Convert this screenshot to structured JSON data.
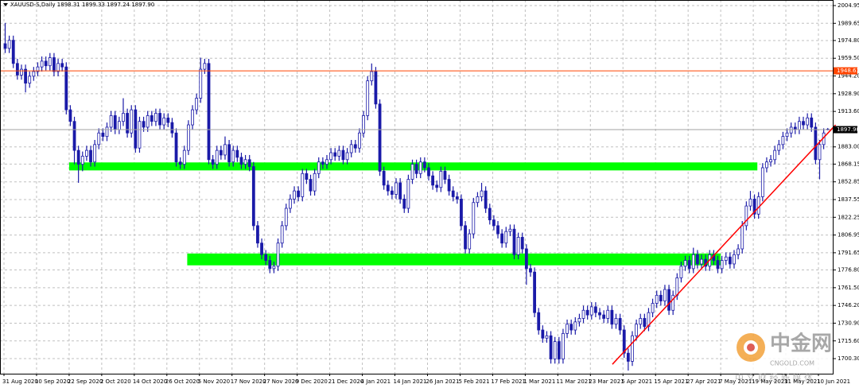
{
  "chart_data": {
    "type": "candlestick",
    "header": "XAUUSD-S,Daily  1898.31 1899.33 1897.24 1897.90",
    "categories": [
      "31 Aug 2020",
      null,
      null,
      null,
      null,
      null,
      null,
      null,
      "10 Sep 2020",
      null,
      null,
      null,
      null,
      null,
      null,
      null,
      "22 Sep 2020",
      null,
      null,
      null,
      null,
      null,
      null,
      null,
      "2 Oct 2020",
      null,
      null,
      null,
      null,
      null,
      null,
      null,
      "14 Oct 2020",
      null,
      null,
      null,
      null,
      null,
      null,
      null,
      "26 Oct 2020",
      null,
      null,
      null,
      null,
      null,
      null,
      null,
      "5 Nov 2020",
      null,
      null,
      null,
      null,
      null,
      null,
      null,
      "17 Nov 2020",
      null,
      null,
      null,
      null,
      null,
      null,
      null,
      "27 Nov 2020",
      null,
      null,
      null,
      null,
      null,
      null,
      null,
      "9 Dec 2020",
      null,
      null,
      null,
      null,
      null,
      null,
      null,
      "21 Dec 2020",
      null,
      null,
      null,
      null,
      null,
      null,
      null,
      "4 Jan 2021",
      null,
      null,
      null,
      null,
      null,
      null,
      null,
      "14 Jan 2021",
      null,
      null,
      null,
      null,
      null,
      null,
      null,
      "26 Jan 2021",
      null,
      null,
      null,
      null,
      null,
      null,
      null,
      "5 Feb 2021",
      null,
      null,
      null,
      null,
      null,
      null,
      null,
      "17 Feb 2021",
      null,
      null,
      null,
      null,
      null,
      null,
      null,
      "1 Mar 2021",
      null,
      null,
      null,
      null,
      null,
      null,
      null,
      "11 Mar 2021",
      null,
      null,
      null,
      null,
      null,
      null,
      null,
      "23 Mar 2021",
      null,
      null,
      null,
      null,
      null,
      null,
      null,
      "5 Apr 2021",
      null,
      null,
      null,
      null,
      null,
      null,
      null,
      "15 Apr 2021",
      null,
      null,
      null,
      null,
      null,
      null,
      null,
      "27 Apr 2021",
      null,
      null,
      null,
      null,
      null,
      null,
      null,
      "7 May 2021",
      null,
      null,
      null,
      null,
      null,
      null,
      null,
      "19 May 2021",
      null,
      null,
      null,
      null,
      null,
      null,
      null,
      "31 May 2021",
      null,
      null,
      null,
      null,
      null,
      null,
      null,
      "10 Jun 2021",
      null,
      null
    ],
    "open": [
      1972,
      1968,
      1975,
      1955,
      1945,
      1950,
      1938,
      1944,
      1948,
      1952,
      1957,
      1953,
      1960,
      1948,
      1955,
      1952,
      1915,
      1905,
      1880,
      1868,
      1875,
      1880,
      1870,
      1885,
      1895,
      1892,
      1900,
      1910,
      1898,
      1905,
      1912,
      1895,
      1915,
      1882,
      1905,
      1900,
      1910,
      1905,
      1912,
      1902,
      1908,
      1904,
      1895,
      1870,
      1868,
      1880,
      1902,
      1915,
      1925,
      1950,
      1955,
      1872,
      1868,
      1880,
      1876,
      1885,
      1870,
      1880,
      1874,
      1868,
      1872,
      1866,
      1815,
      1800,
      1790,
      1785,
      1778,
      1780,
      1800,
      1815,
      1830,
      1838,
      1845,
      1840,
      1860,
      1855,
      1845,
      1860,
      1870,
      1868,
      1872,
      1878,
      1875,
      1880,
      1872,
      1878,
      1885,
      1882,
      1895,
      1910,
      1940,
      1948,
      1920,
      1862,
      1850,
      1845,
      1842,
      1852,
      1838,
      1830,
      1855,
      1868,
      1860,
      1870,
      1865,
      1858,
      1850,
      1848,
      1862,
      1855,
      1845,
      1840,
      1838,
      1815,
      1795,
      1808,
      1835,
      1840,
      1845,
      1830,
      1820,
      1815,
      1808,
      1800,
      1810,
      1812,
      1790,
      1805,
      1795,
      1778,
      1775,
      1740,
      1725,
      1718,
      1720,
      1700,
      1715,
      1700,
      1722,
      1730,
      1725,
      1732,
      1735,
      1742,
      1738,
      1745,
      1740,
      1738,
      1735,
      1742,
      1730,
      1735,
      1725,
      1705,
      1698,
      1720,
      1730,
      1735,
      1728,
      1740,
      1748,
      1755,
      1750,
      1760,
      1742,
      1755,
      1770,
      1780,
      1785,
      1778,
      1790,
      1782,
      1786,
      1780,
      1790,
      1785,
      1778,
      1785,
      1788,
      1782,
      1790,
      1795,
      1815,
      1832,
      1838,
      1825,
      1840,
      1865,
      1870,
      1872,
      1880,
      1885,
      1892,
      1895,
      1900,
      1898,
      1905,
      1902,
      1908,
      1900,
      1872,
      1885,
      1898.31
    ],
    "high": [
      1990,
      1979,
      1979,
      1959,
      1954,
      1954,
      1948,
      1952,
      1956,
      1961,
      1961,
      1964,
      1964,
      1959,
      1959,
      1956,
      1919,
      1909,
      1884,
      1879,
      1884,
      1884,
      1889,
      1899,
      1899,
      1904,
      1914,
      1914,
      1909,
      1925,
      1916,
      1919,
      1919,
      1909,
      1909,
      1914,
      1914,
      1916,
      1916,
      1912,
      1912,
      1908,
      1899,
      1874,
      1884,
      1906,
      1919,
      1929,
      1960,
      1959,
      1959,
      1876,
      1884,
      1884,
      1892,
      1889,
      1884,
      1884,
      1878,
      1876,
      1876,
      1870,
      1819,
      1804,
      1794,
      1789,
      1784,
      1804,
      1819,
      1834,
      1842,
      1849,
      1849,
      1864,
      1864,
      1859,
      1864,
      1874,
      1874,
      1876,
      1882,
      1882,
      1884,
      1884,
      1882,
      1889,
      1889,
      1899,
      1914,
      1944,
      1955,
      1952,
      1924,
      1866,
      1854,
      1849,
      1856,
      1856,
      1842,
      1859,
      1872,
      1872,
      1874,
      1874,
      1869,
      1862,
      1854,
      1866,
      1866,
      1859,
      1849,
      1844,
      1842,
      1819,
      1812,
      1839,
      1844,
      1852,
      1849,
      1834,
      1824,
      1819,
      1812,
      1814,
      1816,
      1816,
      1809,
      1809,
      1799,
      1782,
      1779,
      1744,
      1729,
      1724,
      1724,
      1719,
      1719,
      1726,
      1734,
      1734,
      1736,
      1739,
      1746,
      1746,
      1749,
      1749,
      1744,
      1742,
      1746,
      1746,
      1739,
      1739,
      1729,
      1709,
      1724,
      1734,
      1739,
      1739,
      1744,
      1752,
      1759,
      1759,
      1764,
      1764,
      1759,
      1774,
      1784,
      1789,
      1789,
      1796,
      1794,
      1790,
      1790,
      1794,
      1794,
      1789,
      1789,
      1792,
      1792,
      1794,
      1799,
      1819,
      1836,
      1845,
      1842,
      1844,
      1869,
      1874,
      1876,
      1884,
      1889,
      1896,
      1899,
      1904,
      1904,
      1909,
      1909,
      1912,
      1912,
      1904,
      1889,
      1899,
      1899.33
    ],
    "low": [
      1964,
      1964,
      1951,
      1941,
      1941,
      1930,
      1934,
      1940,
      1944,
      1948,
      1949,
      1949,
      1944,
      1944,
      1948,
      1911,
      1901,
      1868,
      1852,
      1862,
      1871,
      1866,
      1866,
      1881,
      1888,
      1888,
      1896,
      1894,
      1894,
      1901,
      1891,
      1891,
      1878,
      1878,
      1896,
      1896,
      1901,
      1901,
      1898,
      1898,
      1900,
      1891,
      1866,
      1864,
      1864,
      1876,
      1898,
      1911,
      1921,
      1946,
      1868,
      1864,
      1864,
      1872,
      1872,
      1866,
      1866,
      1870,
      1864,
      1864,
      1862,
      1811,
      1796,
      1786,
      1781,
      1774,
      1774,
      1776,
      1796,
      1811,
      1826,
      1834,
      1836,
      1836,
      1851,
      1841,
      1841,
      1856,
      1864,
      1864,
      1868,
      1871,
      1871,
      1868,
      1868,
      1874,
      1878,
      1878,
      1891,
      1906,
      1936,
      1916,
      1858,
      1846,
      1841,
      1838,
      1838,
      1834,
      1826,
      1826,
      1851,
      1856,
      1856,
      1861,
      1854,
      1846,
      1844,
      1844,
      1851,
      1841,
      1836,
      1834,
      1811,
      1791,
      1791,
      1804,
      1831,
      1836,
      1826,
      1816,
      1811,
      1804,
      1796,
      1796,
      1806,
      1786,
      1786,
      1791,
      1764,
      1771,
      1736,
      1721,
      1714,
      1714,
      1696,
      1696,
      1696,
      1696,
      1718,
      1721,
      1721,
      1728,
      1731,
      1734,
      1734,
      1736,
      1734,
      1731,
      1731,
      1726,
      1726,
      1721,
      1701,
      1690,
      1694,
      1716,
      1726,
      1724,
      1724,
      1736,
      1744,
      1746,
      1746,
      1738,
      1738,
      1751,
      1766,
      1776,
      1774,
      1774,
      1778,
      1778,
      1776,
      1776,
      1781,
      1774,
      1774,
      1781,
      1778,
      1778,
      1786,
      1791,
      1811,
      1828,
      1821,
      1821,
      1836,
      1861,
      1866,
      1868,
      1876,
      1881,
      1888,
      1891,
      1894,
      1894,
      1898,
      1898,
      1896,
      1868,
      1855,
      1881,
      1897.24
    ],
    "close": [
      1968,
      1975,
      1955,
      1945,
      1950,
      1938,
      1944,
      1948,
      1952,
      1957,
      1953,
      1960,
      1948,
      1955,
      1952,
      1915,
      1905,
      1880,
      1868,
      1875,
      1880,
      1870,
      1885,
      1895,
      1892,
      1900,
      1910,
      1898,
      1905,
      1912,
      1895,
      1915,
      1882,
      1905,
      1900,
      1910,
      1905,
      1912,
      1902,
      1908,
      1904,
      1895,
      1870,
      1868,
      1880,
      1902,
      1915,
      1925,
      1950,
      1955,
      1872,
      1868,
      1880,
      1876,
      1885,
      1870,
      1880,
      1874,
      1868,
      1872,
      1866,
      1815,
      1800,
      1790,
      1785,
      1778,
      1780,
      1800,
      1815,
      1830,
      1838,
      1845,
      1840,
      1860,
      1855,
      1845,
      1860,
      1870,
      1868,
      1872,
      1878,
      1875,
      1880,
      1872,
      1878,
      1885,
      1882,
      1895,
      1910,
      1940,
      1948,
      1920,
      1862,
      1850,
      1845,
      1842,
      1852,
      1838,
      1830,
      1855,
      1868,
      1860,
      1870,
      1865,
      1858,
      1850,
      1848,
      1862,
      1855,
      1845,
      1840,
      1838,
      1815,
      1795,
      1808,
      1835,
      1840,
      1845,
      1830,
      1820,
      1815,
      1808,
      1800,
      1810,
      1812,
      1790,
      1805,
      1795,
      1778,
      1775,
      1740,
      1725,
      1718,
      1720,
      1700,
      1715,
      1700,
      1722,
      1730,
      1725,
      1732,
      1735,
      1742,
      1738,
      1745,
      1740,
      1738,
      1735,
      1742,
      1730,
      1735,
      1725,
      1705,
      1698,
      1720,
      1730,
      1735,
      1728,
      1740,
      1748,
      1755,
      1750,
      1760,
      1742,
      1755,
      1770,
      1780,
      1785,
      1778,
      1790,
      1782,
      1786,
      1780,
      1790,
      1785,
      1778,
      1785,
      1788,
      1782,
      1790,
      1795,
      1815,
      1832,
      1838,
      1825,
      1840,
      1865,
      1870,
      1872,
      1880,
      1885,
      1892,
      1895,
      1900,
      1898,
      1905,
      1902,
      1908,
      1900,
      1872,
      1885,
      1895,
      1897.9
    ],
    "color": "#1a1aa8",
    "ylim": [
      1687.3,
      2009.75
    ],
    "yticks": [
      2004.95,
      1989.65,
      {
        "value": 1974.8,
        "label": "1974.80"
      },
      {
        "value": 1959.5,
        "label": "1959.50"
      },
      {
        "value": 1944.2,
        "label": "1944.20"
      },
      {
        "value": 1928.9,
        "label": "1928.90"
      },
      {
        "value": 1913.6,
        "label": "1913.60"
      },
      {
        "value": 1883,
        "label": "1883.00"
      },
      1868.15,
      1852.85,
      1837.55,
      1822.25,
      1806.95,
      1791.65,
      {
        "value": 1776.8,
        "label": "1776.80"
      },
      {
        "value": 1761.5,
        "label": "1761.50"
      },
      {
        "value": 1746.2,
        "label": "1746.20"
      },
      {
        "value": 1730.9,
        "label": "1730.90"
      },
      {
        "value": 1715.6,
        "label": "1715.60"
      },
      {
        "value": 1700.3,
        "label": "1700.30"
      }
    ],
    "grid": true,
    "levels": [
      {
        "value": 1948.63,
        "color": "#ff4500"
      },
      {
        "value": 1897.9,
        "label": "1897.90",
        "color": "#a0a0a0"
      }
    ],
    "zones": [
      {
        "from": 1862.7,
        "to": 1869.6,
        "start": 16,
        "end": 185,
        "color": "#00ff00"
      },
      {
        "from": 1780.8,
        "to": 1791,
        "start": 45,
        "end": 176,
        "color": "#00ff00"
      }
    ],
    "trendline": {
      "x": [
        149.4,
        204.2
      ],
      "y": [
        1695.4,
        1902
      ],
      "color": "#ff0000"
    },
    "watermark": {
      "brand": "中金网",
      "site": "CNGOLD.COM",
      "slogan": "中 文 财 经 新 媒 体"
    }
  }
}
